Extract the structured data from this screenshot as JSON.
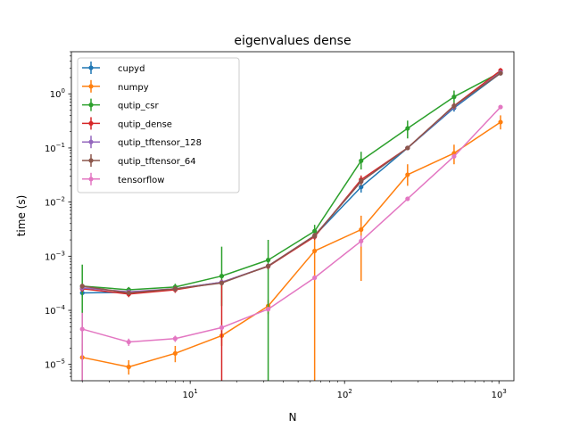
{
  "chart_data": {
    "type": "line",
    "title": "eigenvalues dense",
    "xlabel": "N",
    "ylabel": "time (s)",
    "xscale": "log",
    "yscale": "log",
    "xlim": [
      1.7,
      1250
    ],
    "ylim": [
      5e-06,
      6
    ],
    "x_ticks": [
      {
        "value": 10,
        "base": "10",
        "exp": "1"
      },
      {
        "value": 100,
        "base": "10",
        "exp": "2"
      },
      {
        "value": 1000,
        "base": "10",
        "exp": "3"
      }
    ],
    "y_ticks": [
      {
        "value": 1e-05,
        "base": "10",
        "exp": "−5"
      },
      {
        "value": 0.0001,
        "base": "10",
        "exp": "−4"
      },
      {
        "value": 0.001,
        "base": "10",
        "exp": "−3"
      },
      {
        "value": 0.01,
        "base": "10",
        "exp": "−2"
      },
      {
        "value": 0.1,
        "base": "10",
        "exp": "−1"
      },
      {
        "value": 1,
        "base": "10",
        "exp": "0"
      }
    ],
    "grid": false,
    "legend_position": "upper-left",
    "x": [
      2,
      4,
      8,
      16,
      32,
      64,
      128,
      256,
      512,
      1024
    ],
    "series": [
      {
        "name": "cupyd",
        "color": "#1f77b4",
        "values": [
          0.00021,
          0.000215,
          0.00025,
          0.00033,
          0.00065,
          0.0024,
          0.019,
          0.1,
          0.55,
          2.4
        ],
        "err_low": [
          0.00018,
          0.000185,
          0.00022,
          0.00029,
          0.00057,
          0.0021,
          0.015,
          0.092,
          0.47,
          2.2
        ],
        "err_high": [
          0.00024,
          0.000245,
          0.00028,
          0.00037,
          0.00073,
          0.0027,
          0.023,
          0.108,
          0.63,
          2.6
        ]
      },
      {
        "name": "numpy",
        "color": "#ff7f0e",
        "values": [
          1.35e-05,
          9e-06,
          1.6e-05,
          3.4e-05,
          0.00012,
          0.00125,
          0.0031,
          0.032,
          0.08,
          0.3
        ],
        "err_low": [
          5e-06,
          6.5e-06,
          1.1e-05,
          2.2e-05,
          8.5e-05,
          5e-06,
          0.00035,
          0.02,
          0.05,
          0.22
        ],
        "err_high": [
          2.4e-05,
          1.2e-05,
          2.2e-05,
          4.8e-05,
          0.000155,
          0.0025,
          0.0056,
          0.05,
          0.115,
          0.4
        ]
      },
      {
        "name": "qutip_csr",
        "color": "#2ca02c",
        "values": [
          0.00028,
          0.00024,
          0.00027,
          0.00043,
          0.00085,
          0.0029,
          0.058,
          0.23,
          0.88,
          2.5
        ],
        "err_low": [
          5e-06,
          0.00021,
          0.00023,
          0.00012,
          5e-06,
          0.0021,
          0.04,
          0.15,
          0.68,
          2.2
        ],
        "err_high": [
          0.0007,
          0.00027,
          0.00031,
          0.0015,
          0.002,
          0.0038,
          0.085,
          0.32,
          1.15,
          2.8
        ]
      },
      {
        "name": "qutip_dense",
        "color": "#d62728",
        "values": [
          0.00025,
          0.0002,
          0.00024,
          0.00033,
          0.00065,
          0.0023,
          0.026,
          0.1,
          0.6,
          2.7
        ],
        "err_low": [
          0.00022,
          0.000175,
          0.00021,
          5e-06,
          0.00058,
          0.002,
          0.021,
          0.093,
          0.52,
          2.4
        ],
        "err_high": [
          0.00028,
          0.000225,
          0.00027,
          0.00037,
          0.00072,
          0.0026,
          0.031,
          0.108,
          0.68,
          3.0
        ]
      },
      {
        "name": "qutip_tftensor_128",
        "color": "#9467bd",
        "values": [
          0.00026,
          0.00022,
          0.00025,
          0.00033,
          0.00066,
          0.0024,
          0.024,
          0.1,
          0.58,
          2.5
        ],
        "err_low": [
          0.00023,
          0.0002,
          0.00022,
          0.0003,
          0.0006,
          0.0021,
          0.02,
          0.093,
          0.5,
          2.3
        ],
        "err_high": [
          0.00029,
          0.00024,
          0.00028,
          0.00036,
          0.00072,
          0.0027,
          0.028,
          0.108,
          0.66,
          2.7
        ]
      },
      {
        "name": "qutip_tftensor_64",
        "color": "#8c564b",
        "values": [
          0.00028,
          0.00021,
          0.00025,
          0.00032,
          0.00066,
          0.0024,
          0.024,
          0.1,
          0.6,
          2.4
        ],
        "err_low": [
          0.00025,
          0.00019,
          0.00022,
          0.00029,
          0.0006,
          0.0021,
          0.02,
          0.093,
          0.52,
          2.2
        ],
        "err_high": [
          0.00031,
          0.00023,
          0.00028,
          0.00035,
          0.00072,
          0.0027,
          0.028,
          0.108,
          0.68,
          2.6
        ]
      },
      {
        "name": "tensorflow",
        "color": "#e377c2",
        "values": [
          4.5e-05,
          2.6e-05,
          3e-05,
          4.8e-05,
          0.000105,
          0.0004,
          0.0019,
          0.0115,
          0.07,
          0.57
        ],
        "err_low": [
          5e-06,
          2.2e-05,
          2.6e-05,
          4.3e-05,
          9.6e-05,
          0.00037,
          0.0015,
          0.0105,
          0.063,
          0.54
        ],
        "err_high": [
          9e-05,
          3e-05,
          3.4e-05,
          5.3e-05,
          0.000115,
          0.00043,
          0.0024,
          0.0125,
          0.077,
          0.6
        ]
      }
    ]
  }
}
